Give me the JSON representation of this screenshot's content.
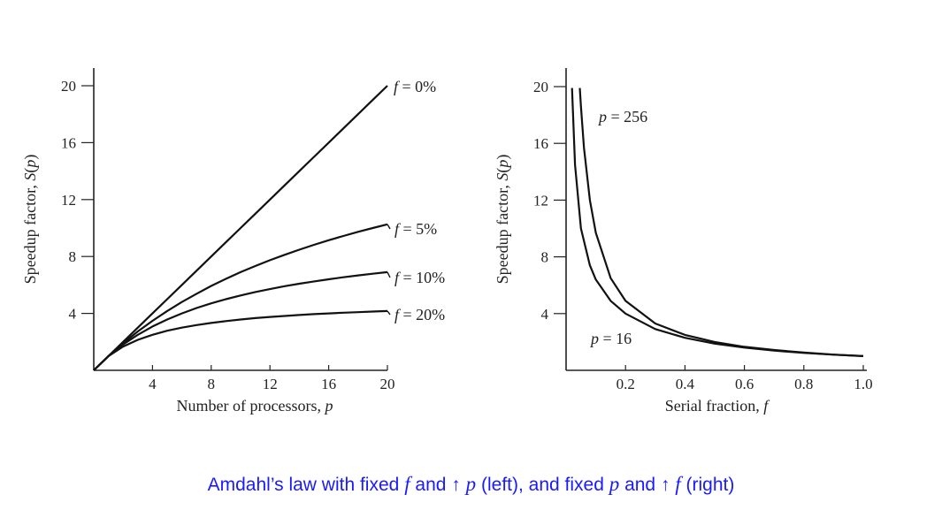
{
  "caption": {
    "part1": "Amdahl’s law with fixed",
    "var_f": "f",
    "part2": "and ↑",
    "var_p": "p",
    "part3": "(left), and fixed",
    "var_p2": "p",
    "part4": "and ↑",
    "var_f2": "f",
    "part5": "(right)"
  },
  "chart_data": [
    {
      "type": "line",
      "xlabel": "Number of processors, p",
      "ylabel": "Speedup factor, S(p)",
      "xlim": [
        0,
        20
      ],
      "ylim": [
        0,
        20
      ],
      "xticks": [
        "4",
        "8",
        "12",
        "16",
        "20"
      ],
      "yticks": [
        "4",
        "8",
        "12",
        "16",
        "20"
      ],
      "x": [
        0,
        1,
        2,
        3,
        4,
        5,
        6,
        7,
        8,
        9,
        10,
        11,
        12,
        13,
        14,
        15,
        16,
        17,
        18,
        19,
        20
      ],
      "series": [
        {
          "name": "f = 0%",
          "values": [
            0,
            1.0,
            2.0,
            3.0,
            4.0,
            5.0,
            6.0,
            7.0,
            8.0,
            9.0,
            10.0,
            11.0,
            12.0,
            13.0,
            14.0,
            15.0,
            16.0,
            17.0,
            18.0,
            19.0,
            20.0
          ]
        },
        {
          "name": "f = 5%",
          "values": [
            0,
            1.0,
            1.9,
            2.73,
            3.48,
            4.17,
            4.8,
            5.38,
            5.93,
            6.43,
            6.9,
            7.33,
            7.74,
            8.12,
            8.48,
            8.82,
            9.14,
            9.44,
            9.73,
            10.0,
            10.26
          ]
        },
        {
          "name": "f = 10%",
          "values": [
            0,
            1.0,
            1.82,
            2.5,
            3.08,
            3.57,
            4.0,
            4.38,
            4.71,
            5.0,
            5.26,
            5.5,
            5.71,
            5.91,
            6.09,
            6.25,
            6.4,
            6.54,
            6.67,
            6.79,
            6.9
          ]
        },
        {
          "name": "f = 20%",
          "values": [
            0,
            1.0,
            1.67,
            2.14,
            2.5,
            2.78,
            3.0,
            3.18,
            3.33,
            3.46,
            3.57,
            3.67,
            3.75,
            3.82,
            3.89,
            3.95,
            4.0,
            4.05,
            4.09,
            4.13,
            4.17
          ]
        }
      ]
    },
    {
      "type": "line",
      "xlabel": "Serial fraction, f",
      "ylabel": "Speedup factor, S(p)",
      "xlim": [
        0,
        1.0
      ],
      "ylim": [
        0,
        20
      ],
      "xticks": [
        "0.2",
        "0.4",
        "0.6",
        "0.8",
        "1.0"
      ],
      "yticks": [
        "4",
        "8",
        "12",
        "16",
        "20"
      ],
      "series": [
        {
          "name": "p = 256",
          "x": [
            0.046,
            0.05,
            0.06,
            0.08,
            0.1,
            0.15,
            0.2,
            0.3,
            0.4,
            0.5,
            0.6,
            0.7,
            0.8,
            0.9,
            1.0
          ],
          "values": [
            19.9,
            18.6,
            15.7,
            12.0,
            9.7,
            6.5,
            4.9,
            3.3,
            2.5,
            2.0,
            1.66,
            1.43,
            1.25,
            1.11,
            1.0
          ]
        },
        {
          "name": "p = 16",
          "x": [
            0.02,
            0.03,
            0.05,
            0.08,
            0.1,
            0.15,
            0.2,
            0.3,
            0.4,
            0.5,
            0.6,
            0.7,
            0.8,
            0.9,
            1.0
          ],
          "values": [
            19.9,
            14.5,
            10.0,
            7.4,
            6.4,
            4.9,
            4.0,
            2.91,
            2.29,
            1.88,
            1.6,
            1.39,
            1.23,
            1.1,
            1.0
          ]
        }
      ]
    }
  ]
}
